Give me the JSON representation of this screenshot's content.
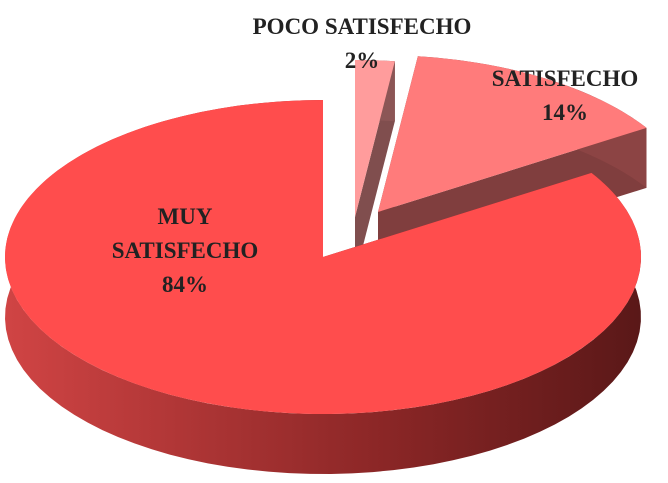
{
  "chart_data": {
    "type": "pie",
    "categories": [
      "POCO SATISFECHO",
      "SATISFECHO",
      "MUY SATISFECHO"
    ],
    "values": [
      2,
      14,
      84
    ],
    "value_labels": [
      "2%",
      "14%",
      "84%"
    ],
    "colors": [
      "#ff9c9c",
      "#ff7b7b",
      "#ff4d4d"
    ]
  }
}
